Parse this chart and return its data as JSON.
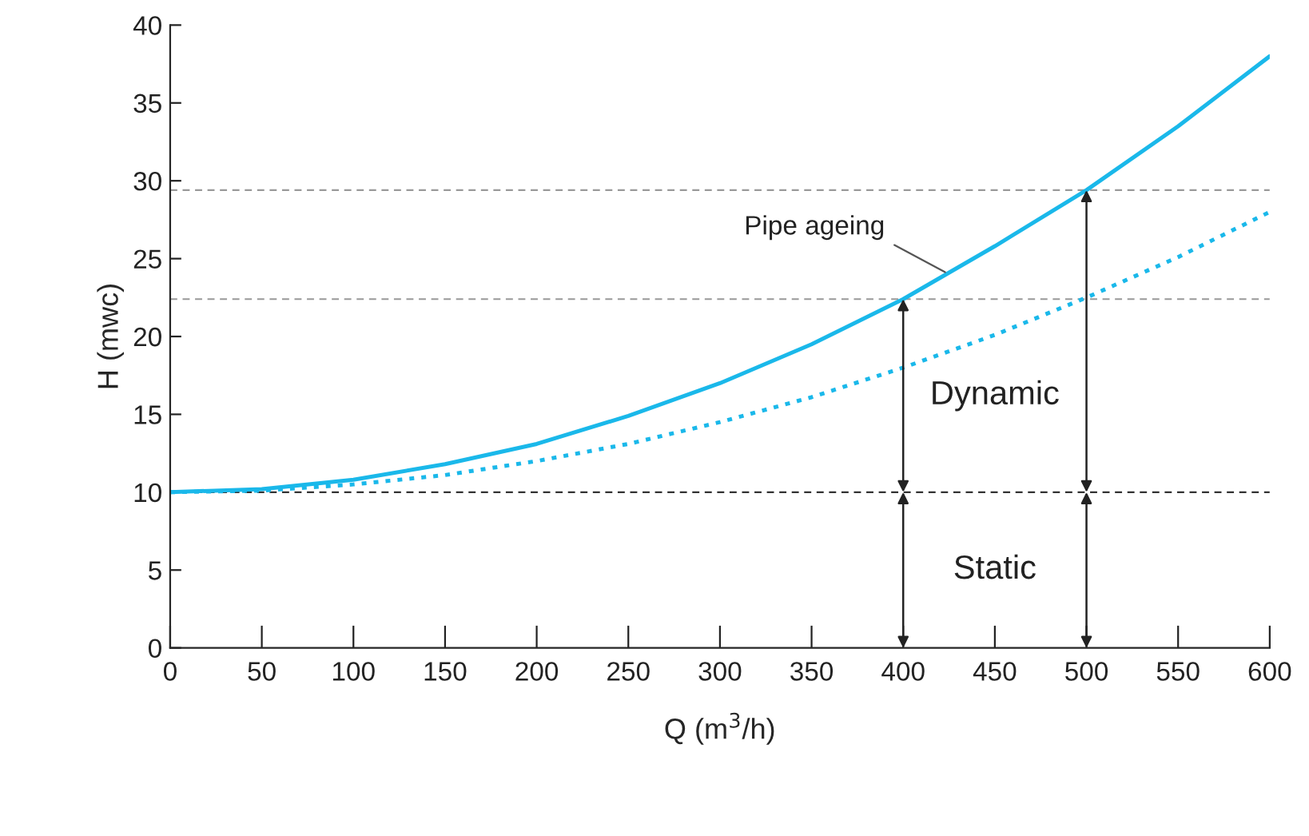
{
  "chart_data": {
    "type": "line",
    "xlabel": "Q (m$^{3}$/h)",
    "ylabel": "H (mwc)",
    "x": [
      0,
      50,
      100,
      150,
      200,
      250,
      300,
      350,
      400,
      450,
      500,
      550,
      600
    ],
    "series": [
      {
        "color": "#1ab8ea",
        "line_style": "solid",
        "values": [
          10,
          10.2,
          10.8,
          11.8,
          13.1,
          14.9,
          17.0,
          19.5,
          22.4,
          25.8,
          29.4,
          33.5,
          38
        ]
      },
      {
        "color": "#1ab8ea",
        "line_style": "dotted",
        "values": [
          10,
          10.1,
          10.5,
          11.1,
          12.0,
          13.1,
          14.5,
          16.1,
          18.0,
          20.1,
          22.5,
          25.1,
          28
        ]
      }
    ],
    "xlim": [
      0,
      600
    ],
    "xticks": [
      0,
      50,
      100,
      150,
      200,
      250,
      300,
      350,
      400,
      450,
      500,
      550,
      600
    ],
    "ylim": [
      0,
      40
    ],
    "yticks": [
      0,
      5,
      10,
      15,
      20,
      25,
      30,
      35,
      40
    ],
    "ref_lines": [
      {
        "axis": "y",
        "value": 10,
        "color": "#333333",
        "line_style": "dashed"
      },
      {
        "axis": "y",
        "value": 22.4,
        "color": "#999999",
        "line_style": "dashed"
      },
      {
        "axis": "y",
        "value": 29.4,
        "color": "#999999",
        "line_style": "dashed"
      }
    ],
    "annotations": [
      {
        "text": "Pipe ageing",
        "x": 425,
        "y": 24
      },
      "Dynamic",
      "Static"
    ],
    "grid": false,
    "legend": false,
    "marker": "none"
  }
}
